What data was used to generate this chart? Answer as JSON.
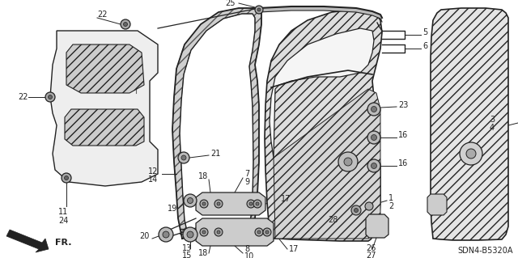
{
  "bg_color": "#ffffff",
  "line_color": "#222222",
  "diagram_code": "SDN4-B5320A",
  "hatch_color": "#aaaaaa",
  "part_fill": "#e0e0e0",
  "dark_fill": "#999999"
}
